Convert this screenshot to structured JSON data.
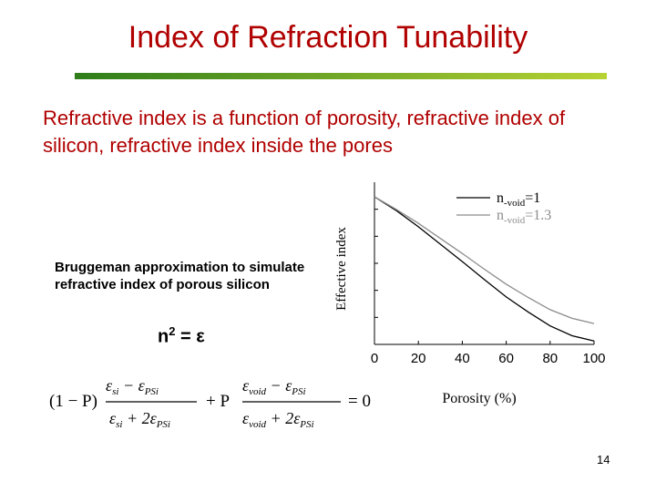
{
  "slide": {
    "title": "Index of Refraction Tunability",
    "subtitle": "Refractive index is a function of porosity, refractive index of silicon, refractive index inside the pores",
    "method_text": "Bruggeman approximation to simulate refractive index of porous silicon",
    "relation": {
      "lhs": "n",
      "exp": "2",
      "rhs": "= ε"
    },
    "equation": {
      "t1": "(1 − P)",
      "t2": "+ P",
      "t3": "= 0",
      "e1n": "ε",
      "s1n": "si",
      "m1": " − ε",
      "s1n2": "PSi",
      "e1d": "ε",
      "s1d": "si",
      "p1": " + 2ε",
      "s1d2": "PSi",
      "e2n": "ε",
      "s2n": "void",
      "m2": " − ε",
      "s2n2": "PSi",
      "e2d": "ε",
      "s2d": "void",
      "p2": " + 2ε",
      "s2d2": "PSi"
    },
    "page_number": "14",
    "colors": {
      "title": "#b00000",
      "rule_start": "#2e7d1a",
      "rule_end": "#b7d334"
    }
  },
  "chart_data": {
    "type": "line",
    "xlabel": "Porosity (%)",
    "ylabel": "Effective index",
    "xlim": [
      0,
      100
    ],
    "ylim": [
      0.95,
      3.75
    ],
    "xticks": [
      "0",
      "20",
      "40",
      "60",
      "80",
      "100"
    ],
    "legend_placement": "top-right",
    "series": [
      {
        "base": "n",
        "sub": "void",
        "value": "=1",
        "color": "#000000",
        "x": [
          0,
          10,
          20,
          30,
          40,
          50,
          60,
          70,
          80,
          90,
          100
        ],
        "y": [
          3.5,
          3.26,
          2.98,
          2.68,
          2.38,
          2.07,
          1.77,
          1.51,
          1.27,
          1.1,
          1.01
        ]
      },
      {
        "base": "n",
        "sub": "void",
        "value": "=1.3",
        "color": "#8c8c8c",
        "x": [
          0,
          10,
          20,
          30,
          40,
          50,
          60,
          70,
          80,
          90,
          100
        ],
        "y": [
          3.5,
          3.28,
          3.04,
          2.78,
          2.52,
          2.25,
          1.99,
          1.76,
          1.55,
          1.4,
          1.31
        ]
      }
    ]
  }
}
